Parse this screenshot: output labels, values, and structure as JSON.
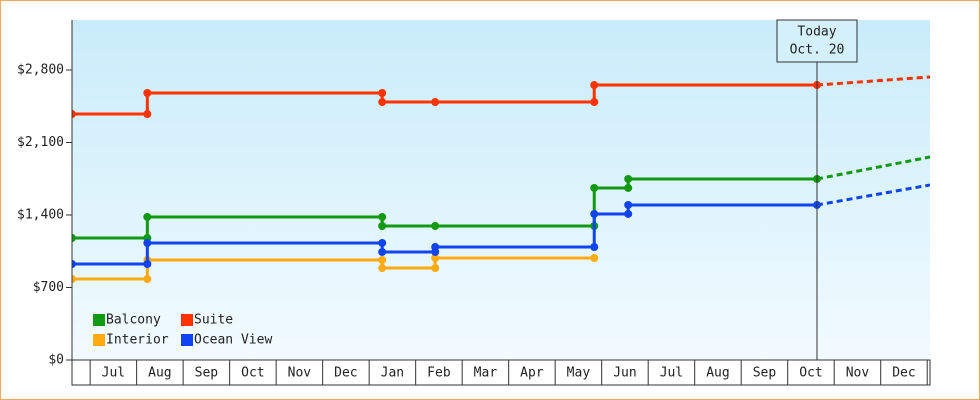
{
  "chart_data": {
    "type": "step-line",
    "xlim": [
      -0.39,
      18.06
    ],
    "xticks": [
      {
        "value": 0.5,
        "label": "Jul"
      },
      {
        "value": 1.5,
        "label": "Aug"
      },
      {
        "value": 2.5,
        "label": "Sep"
      },
      {
        "value": 3.5,
        "label": "Oct"
      },
      {
        "value": 4.5,
        "label": "Nov"
      },
      {
        "value": 5.5,
        "label": "Dec"
      },
      {
        "value": 6.5,
        "label": "Jan"
      },
      {
        "value": 7.5,
        "label": "Feb"
      },
      {
        "value": 8.5,
        "label": "Mar"
      },
      {
        "value": 9.5,
        "label": "Apr"
      },
      {
        "value": 10.5,
        "label": "May"
      },
      {
        "value": 11.5,
        "label": "Jun"
      },
      {
        "value": 12.5,
        "label": "Jul"
      },
      {
        "value": 13.5,
        "label": "Aug"
      },
      {
        "value": 14.5,
        "label": "Sep"
      },
      {
        "value": 15.5,
        "label": "Oct"
      },
      {
        "value": 16.5,
        "label": "Nov"
      },
      {
        "value": 17.5,
        "label": "Dec"
      }
    ],
    "ylim": [
      0,
      3283
    ],
    "yticks": [
      {
        "value": 0,
        "label": "$0"
      },
      {
        "value": 700,
        "label": "$700"
      },
      {
        "value": 1400,
        "label": "$1,400"
      },
      {
        "value": 2100,
        "label": "$2,100"
      },
      {
        "value": 2800,
        "label": "$2,800"
      }
    ],
    "grid": false,
    "legend": "bottom-left",
    "today": {
      "x": 15.63,
      "label": [
        "Today",
        "Oct. 20"
      ]
    },
    "series": [
      {
        "name": "Balcony",
        "color": "#119911",
        "x": [
          -0.39,
          1.23,
          1.23,
          6.28,
          6.28,
          7.42,
          10.84,
          10.84,
          11.57,
          11.57,
          15.63
        ],
        "values": [
          1178,
          1178,
          1381,
          1381,
          1294,
          1294,
          1294,
          1661,
          1661,
          1748,
          1748
        ],
        "forecast": {
          "x": [
            15.63,
            18.06
          ],
          "values": [
            1748,
            1960
          ]
        }
      },
      {
        "name": "Suite",
        "color": "#ff3300",
        "x": [
          -0.39,
          1.23,
          1.23,
          6.28,
          6.28,
          7.42,
          10.84,
          10.84,
          15.63
        ],
        "values": [
          2375,
          2375,
          2578,
          2578,
          2491,
          2491,
          2491,
          2655,
          2655
        ],
        "forecast": {
          "x": [
            15.63,
            18.06
          ],
          "values": [
            2655,
            2733
          ]
        }
      },
      {
        "name": "Interior",
        "color": "#ffaa11",
        "x": [
          -0.39,
          1.23,
          1.23,
          6.28,
          6.28,
          7.42,
          7.42,
          10.84
        ],
        "values": [
          782,
          782,
          966,
          966,
          888,
          888,
          985,
          985
        ]
      },
      {
        "name": "Ocean View",
        "color": "#1144ee",
        "x": [
          -0.39,
          1.23,
          1.23,
          6.28,
          6.28,
          7.42,
          7.42,
          10.84,
          10.84,
          11.57,
          11.57,
          15.63
        ],
        "values": [
          927,
          927,
          1130,
          1130,
          1043,
          1043,
          1091,
          1091,
          1410,
          1410,
          1497,
          1497
        ],
        "forecast": {
          "x": [
            15.63,
            18.06
          ],
          "values": [
            1497,
            1690
          ]
        }
      }
    ]
  }
}
